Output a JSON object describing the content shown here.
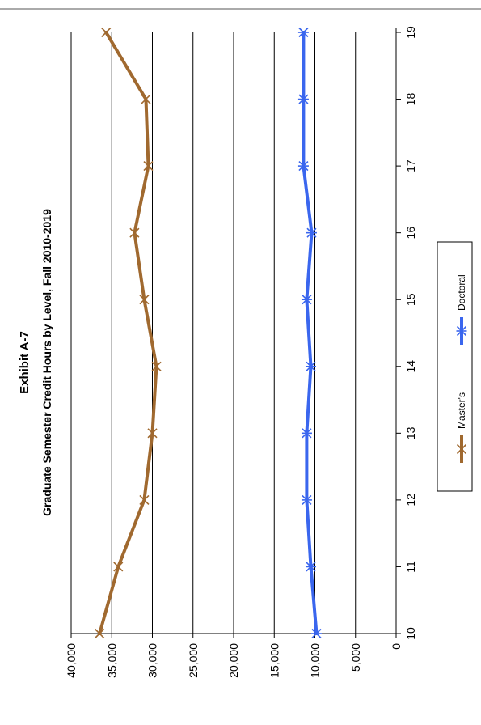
{
  "chart_data": {
    "type": "line",
    "title": "Exhibit A-7",
    "subtitle": "Graduate Semester Credit Hours by Level, Fall 2010-2019",
    "xlabel": "",
    "ylabel": "",
    "x": [
      10,
      11,
      12,
      13,
      14,
      15,
      16,
      17,
      18,
      19
    ],
    "x_ticks": [
      "10",
      "11",
      "12",
      "13",
      "14",
      "15",
      "16",
      "17",
      "18",
      "19"
    ],
    "ylim": [
      0,
      40000
    ],
    "y_ticks": [
      0,
      5000,
      10000,
      15000,
      20000,
      25000,
      30000,
      35000,
      40000
    ],
    "y_tick_labels": [
      "0",
      "5,000",
      "10,000",
      "15,000",
      "20,000",
      "25,000",
      "30,000",
      "35,000",
      "40,000"
    ],
    "grid": true,
    "orientation": "rotated-90-counterclockwise",
    "legend_position": "bottom",
    "series": [
      {
        "name": "Master's",
        "color": "#a0692f",
        "marker": "x",
        "values": [
          36500,
          34200,
          31000,
          30000,
          29500,
          31000,
          32200,
          30500,
          30800,
          35700
        ]
      },
      {
        "name": "Doctoral",
        "color": "#3a66ee",
        "marker": "asterisk",
        "values": [
          9800,
          10500,
          11000,
          11000,
          10500,
          11000,
          10400,
          11400,
          11400,
          11400
        ]
      }
    ]
  }
}
